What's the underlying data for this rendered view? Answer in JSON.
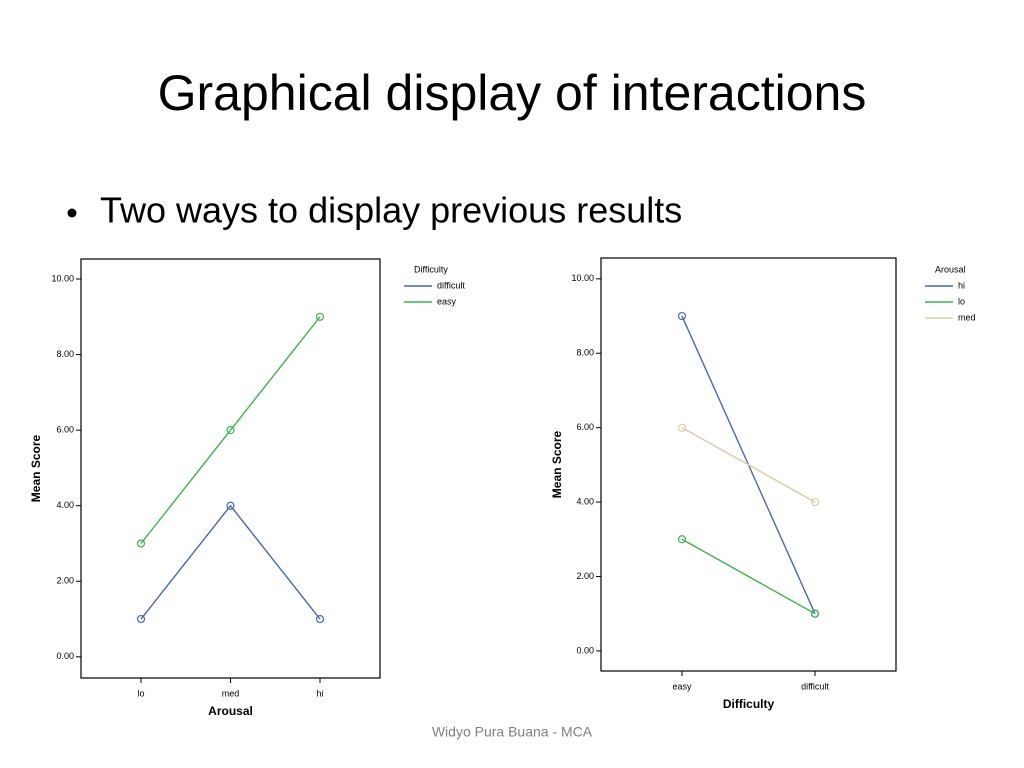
{
  "title": "Graphical display of interactions",
  "bullet": "Two ways to display previous results",
  "footer": "Widyo Pura Buana - MCA",
  "chart_data": [
    {
      "type": "line",
      "x_label": "Arousal",
      "y_label": "Mean Score",
      "legend_title": "Difficulty",
      "categories": [
        "lo",
        "med",
        "hi"
      ],
      "series": [
        {
          "name": "difficult",
          "color": "#4a67b4",
          "values": [
            1,
            4,
            1
          ]
        },
        {
          "name": "easy",
          "color": "#3cb54a",
          "values": [
            3,
            6,
            9
          ]
        }
      ],
      "ylim": [
        -0.56,
        10.53
      ],
      "yticks": [
        {
          "value": 0,
          "label": "0.00"
        },
        {
          "value": 2,
          "label": "2.00"
        },
        {
          "value": 4,
          "label": "4.00"
        },
        {
          "value": 6,
          "label": "6.00"
        },
        {
          "value": 8,
          "label": "8.00"
        },
        {
          "value": 10,
          "label": "10.00"
        }
      ]
    },
    {
      "type": "line",
      "x_label": "Difficulty",
      "y_label": "Mean Score",
      "legend_title": "Arousal",
      "categories": [
        "easy",
        "difficult"
      ],
      "series": [
        {
          "name": "hi",
          "color": "#4a67b4",
          "values": [
            9,
            1
          ]
        },
        {
          "name": "lo",
          "color": "#3cb54a",
          "values": [
            3,
            1
          ]
        },
        {
          "name": "med",
          "color": "#d8d0a0",
          "values": [
            6,
            4
          ]
        }
      ],
      "ylim": [
        -0.54,
        10.56
      ],
      "yticks": [
        {
          "value": 0,
          "label": "0.00"
        },
        {
          "value": 2,
          "label": "2.00"
        },
        {
          "value": 4,
          "label": "4.00"
        },
        {
          "value": 6,
          "label": "6.00"
        },
        {
          "value": 8,
          "label": "8.00"
        },
        {
          "value": 10,
          "label": "10.00"
        }
      ]
    }
  ]
}
